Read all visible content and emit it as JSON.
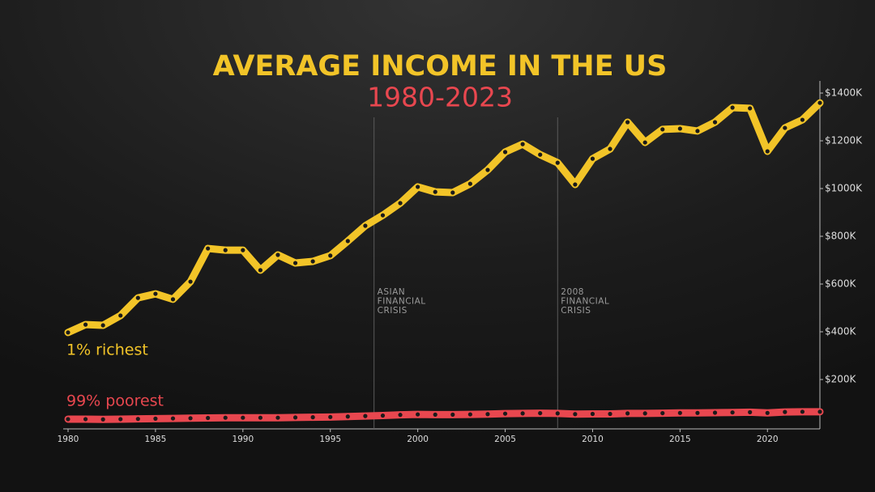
{
  "chart_data": {
    "type": "line",
    "title": "AVERAGE INCOME IN THE US",
    "subtitle": "1980-2023",
    "x": [
      1980,
      1981,
      1982,
      1983,
      1984,
      1985,
      1986,
      1987,
      1988,
      1989,
      1990,
      1991,
      1992,
      1993,
      1994,
      1995,
      1996,
      1997,
      1998,
      1999,
      2000,
      2001,
      2002,
      2003,
      2004,
      2005,
      2006,
      2007,
      2008,
      2009,
      2010,
      2011,
      2012,
      2013,
      2014,
      2015,
      2016,
      2017,
      2018,
      2019,
      2020,
      2021,
      2022,
      2023
    ],
    "series": [
      {
        "name": "1% richest",
        "color": "#f2c428",
        "values": [
          397,
          430,
          427,
          468,
          542,
          559,
          536,
          610,
          749,
          742,
          742,
          658,
          722,
          688,
          695,
          719,
          780,
          844,
          888,
          939,
          1007,
          986,
          983,
          1020,
          1078,
          1153,
          1186,
          1142,
          1108,
          1017,
          1125,
          1166,
          1278,
          1193,
          1248,
          1251,
          1241,
          1278,
          1339,
          1336,
          1156,
          1254,
          1288,
          1359
        ]
      },
      {
        "name": "99% poorest",
        "color": "#e8474f",
        "values": [
          34,
          34,
          33,
          34,
          35,
          36,
          37,
          38,
          39,
          40,
          40,
          40,
          40,
          41,
          42,
          43,
          45,
          47,
          49,
          52,
          54,
          53,
          53,
          54,
          55,
          57,
          58,
          59,
          58,
          55,
          56,
          56,
          58,
          58,
          59,
          60,
          60,
          61,
          62,
          63,
          60,
          64,
          65,
          65
        ]
      }
    ],
    "xlim": [
      1980,
      2023
    ],
    "xticks": [
      1980,
      1985,
      1990,
      1995,
      2000,
      2005,
      2010,
      2015,
      2020
    ],
    "ylim": [
      0,
      1400
    ],
    "yticks": [
      {
        "value": 200,
        "label": "$200K"
      },
      {
        "value": 400,
        "label": "$400K"
      },
      {
        "value": 600,
        "label": "$600K"
      },
      {
        "value": 800,
        "label": "$800K"
      },
      {
        "value": 1000,
        "label": "$1000K"
      },
      {
        "value": 1200,
        "label": "$1200K"
      },
      {
        "value": 1400,
        "label": "$1400K"
      }
    ],
    "annotations": [
      {
        "x": 1997.5,
        "lines": [
          "ASIAN",
          "FINANCIAL",
          "CRISIS"
        ]
      },
      {
        "x": 2008,
        "lines": [
          "2008",
          "FINANCIAL",
          "CRISIS"
        ]
      }
    ]
  }
}
